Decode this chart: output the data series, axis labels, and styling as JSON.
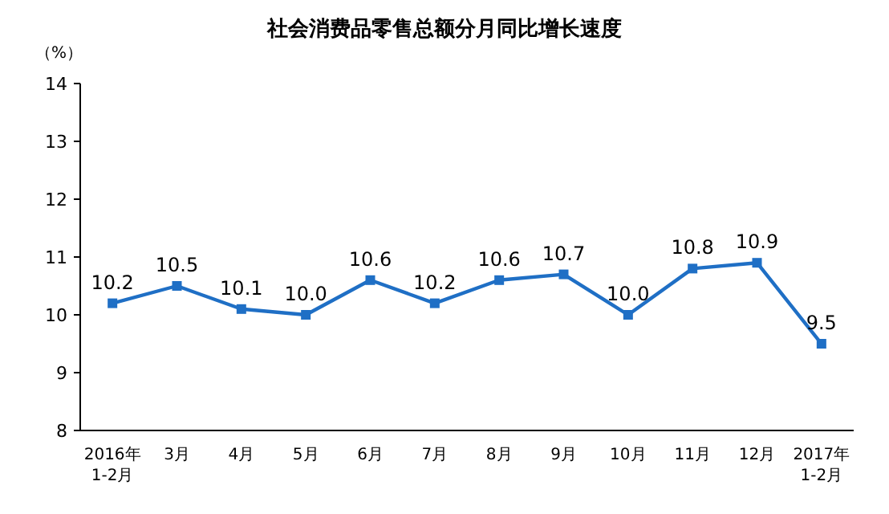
{
  "chart_data": {
    "type": "line",
    "title": "社会消费品零售总额分月同比增长速度",
    "ylabel": "（%）",
    "categories": [
      "2016年\n1-2月",
      "3月",
      "4月",
      "5月",
      "6月",
      "7月",
      "8月",
      "9月",
      "10月",
      "11月",
      "12月",
      "2017年\n1-2月"
    ],
    "values": [
      10.2,
      10.5,
      10.1,
      10.0,
      10.6,
      10.2,
      10.6,
      10.7,
      10.0,
      10.8,
      10.9,
      9.5
    ],
    "color": "#1f6fc5",
    "ylim": [
      8,
      14
    ],
    "yticks": [
      8,
      9,
      10,
      11,
      12,
      13,
      14
    ],
    "value_labels": [
      "10.2",
      "10.5",
      "10.1",
      "10.0",
      "10.6",
      "10.2",
      "10.6",
      "10.7",
      "10.0",
      "10.8",
      "10.9",
      "9.5"
    ],
    "marker": "square",
    "line_style": "solid"
  }
}
